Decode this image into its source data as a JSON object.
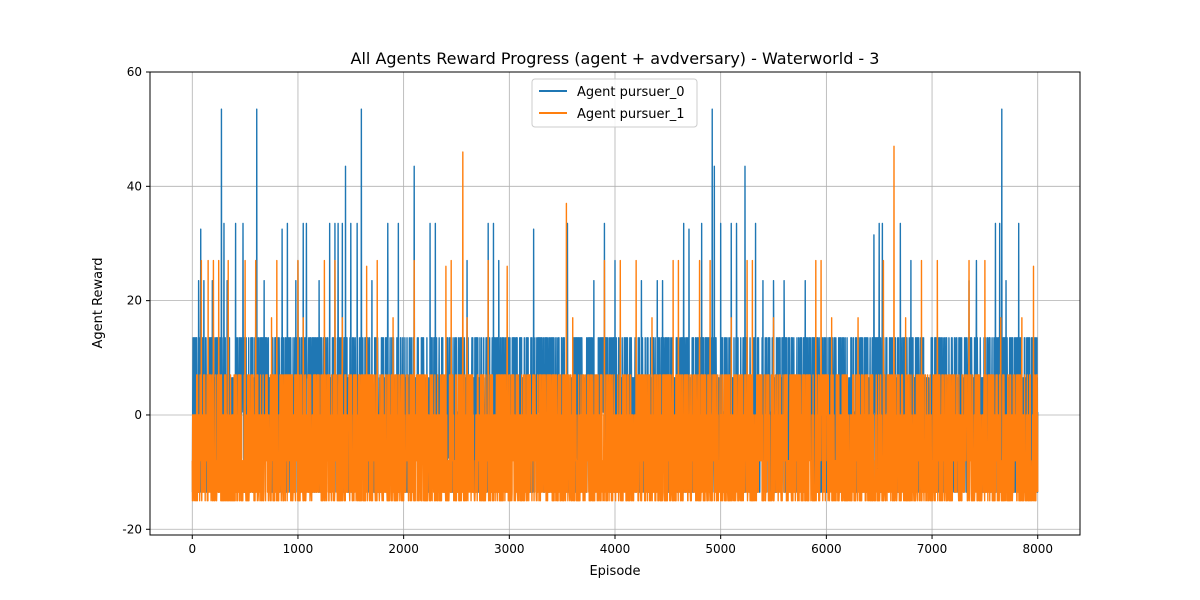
{
  "chart_data": {
    "type": "line",
    "title": "All Agents Reward Progress (agent + avdversary) - Waterworld - 3",
    "xlabel": "Episode",
    "ylabel": "Agent Reward",
    "xlim": [
      -400,
      8400
    ],
    "ylim": [
      -21,
      60
    ],
    "x_ticks": [
      0,
      1000,
      2000,
      3000,
      4000,
      5000,
      6000,
      7000,
      8000
    ],
    "y_ticks": [
      -20,
      0,
      20,
      40,
      60
    ],
    "grid": true,
    "legend_position": "top-center",
    "episodes": 8000,
    "series": [
      {
        "name": "Agent pursuer_0",
        "color": "#1f77b4",
        "baseline_levels": [
          -13.5,
          -7.5,
          0.5,
          6.5,
          13.5
        ],
        "spikes": [
          [
            15,
            13.5
          ],
          [
            60,
            23.5
          ],
          [
            80,
            32.5
          ],
          [
            110,
            23.5
          ],
          [
            150,
            13.5
          ],
          [
            190,
            23.5
          ],
          [
            275,
            53.5
          ],
          [
            300,
            33.5
          ],
          [
            330,
            23.5
          ],
          [
            410,
            33.5
          ],
          [
            480,
            33.5
          ],
          [
            610,
            53.5
          ],
          [
            680,
            23.5
          ],
          [
            850,
            32.5
          ],
          [
            900,
            33.5
          ],
          [
            980,
            23.5
          ],
          [
            1000,
            27.0
          ],
          [
            1050,
            33.5
          ],
          [
            1080,
            33.5
          ],
          [
            1200,
            23.5
          ],
          [
            1300,
            33.5
          ],
          [
            1350,
            33.5
          ],
          [
            1380,
            33.5
          ],
          [
            1420,
            33.5
          ],
          [
            1450,
            43.5
          ],
          [
            1500,
            33.5
          ],
          [
            1560,
            33.5
          ],
          [
            1600,
            53.5
          ],
          [
            1700,
            23.5
          ],
          [
            1850,
            33.5
          ],
          [
            1950,
            33.5
          ],
          [
            2100,
            43.5
          ],
          [
            2250,
            33.5
          ],
          [
            2300,
            33.5
          ],
          [
            2600,
            27.0
          ],
          [
            2800,
            33.5
          ],
          [
            2850,
            33.5
          ],
          [
            2900,
            27.0
          ],
          [
            3230,
            32.5
          ],
          [
            3550,
            33.5
          ],
          [
            3800,
            23.5
          ],
          [
            3900,
            33.5
          ],
          [
            4000,
            27.0
          ],
          [
            4250,
            23.5
          ],
          [
            4400,
            23.5
          ],
          [
            4450,
            23.5
          ],
          [
            4650,
            33.5
          ],
          [
            4700,
            32.5
          ],
          [
            4820,
            33.5
          ],
          [
            4920,
            53.5
          ],
          [
            4940,
            43.5
          ],
          [
            5000,
            33.5
          ],
          [
            5100,
            33.5
          ],
          [
            5150,
            33.5
          ],
          [
            5230,
            43.5
          ],
          [
            5330,
            33.5
          ],
          [
            5400,
            23.5
          ],
          [
            5500,
            23.5
          ],
          [
            5600,
            23.5
          ],
          [
            5800,
            23.5
          ],
          [
            6450,
            31.5
          ],
          [
            6500,
            33.5
          ],
          [
            6530,
            33.5
          ],
          [
            6700,
            33.5
          ],
          [
            6800,
            27.0
          ],
          [
            7350,
            23.5
          ],
          [
            7420,
            27.0
          ],
          [
            7600,
            33.5
          ],
          [
            7640,
            33.5
          ],
          [
            7660,
            53.5
          ],
          [
            7700,
            23.5
          ],
          [
            7820,
            33.5
          ]
        ]
      },
      {
        "name": "Agent pursuer_1",
        "color": "#ff7f0e",
        "baseline_levels": [
          -15.0,
          -13.5,
          -8.0,
          0.0,
          7.0
        ],
        "spikes": [
          [
            85,
            27.0
          ],
          [
            150,
            27.0
          ],
          [
            200,
            27.0
          ],
          [
            250,
            27.0
          ],
          [
            340,
            27.0
          ],
          [
            500,
            27.0
          ],
          [
            600,
            27.0
          ],
          [
            750,
            17.0
          ],
          [
            800,
            27.0
          ],
          [
            1000,
            27.0
          ],
          [
            1050,
            17.0
          ],
          [
            1250,
            27.0
          ],
          [
            1350,
            27.0
          ],
          [
            1420,
            17.0
          ],
          [
            1650,
            26.0
          ],
          [
            1750,
            27.0
          ],
          [
            1900,
            17.0
          ],
          [
            2100,
            27.0
          ],
          [
            2400,
            26.0
          ],
          [
            2450,
            27.0
          ],
          [
            2560,
            46.0
          ],
          [
            2600,
            17.0
          ],
          [
            2800,
            27.0
          ],
          [
            2980,
            26.0
          ],
          [
            3540,
            37.0
          ],
          [
            3600,
            17.0
          ],
          [
            3900,
            27.0
          ],
          [
            4050,
            27.0
          ],
          [
            4200,
            27.0
          ],
          [
            4350,
            17.0
          ],
          [
            4550,
            27.0
          ],
          [
            4600,
            27.0
          ],
          [
            4800,
            27.0
          ],
          [
            4900,
            27.0
          ],
          [
            5100,
            17.0
          ],
          [
            5250,
            27.0
          ],
          [
            5300,
            27.0
          ],
          [
            5500,
            17.0
          ],
          [
            5900,
            27.0
          ],
          [
            5950,
            27.0
          ],
          [
            6050,
            17.0
          ],
          [
            6300,
            17.0
          ],
          [
            6540,
            27.0
          ],
          [
            6640,
            47.0
          ],
          [
            6750,
            17.0
          ],
          [
            6900,
            27.0
          ],
          [
            7050,
            27.0
          ],
          [
            7350,
            27.0
          ],
          [
            7500,
            27.0
          ],
          [
            7650,
            17.0
          ],
          [
            7850,
            17.0
          ],
          [
            7960,
            26.0
          ]
        ]
      }
    ]
  }
}
